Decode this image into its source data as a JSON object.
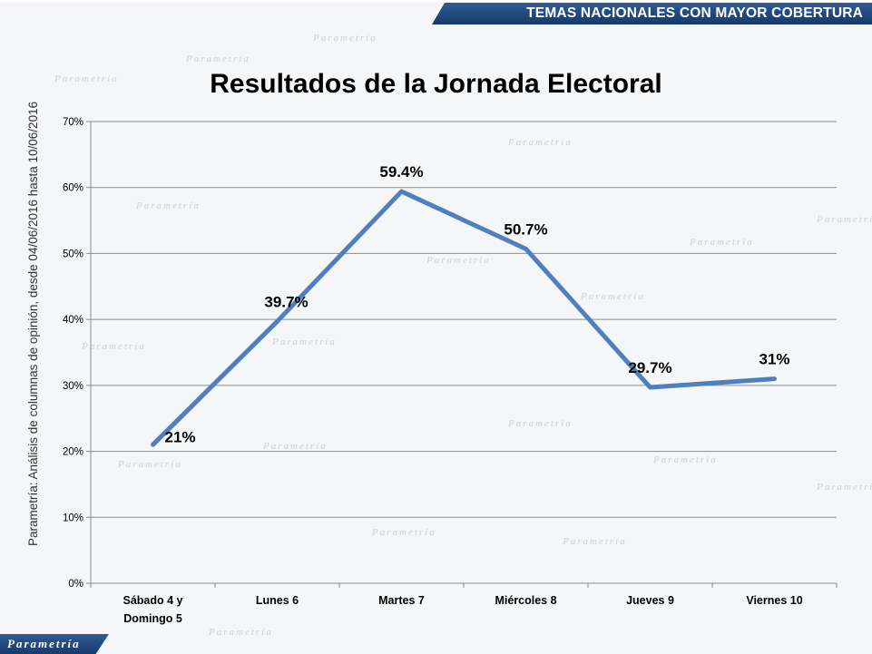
{
  "header": {
    "banner_text": "TEMAS NACIONALES CON MAYOR COBERTURA"
  },
  "side_note": "Parametría: Análisis de columnas de opinión, desde 04/06/2016 hasta  10/06/2016",
  "footer": {
    "logo_text": "Parametría",
    "watermark_text": "Parametría"
  },
  "colors": {
    "series": "#4f7fbd",
    "banner": "#2f5a94",
    "grid": "#8c8c8c"
  },
  "chart_data": {
    "type": "line",
    "title": "Resultados de la Jornada Electoral",
    "xlabel": "",
    "ylabel": "",
    "ylim": [
      0,
      70
    ],
    "yticks": [
      "0%",
      "10%",
      "20%",
      "30%",
      "40%",
      "50%",
      "60%",
      "70%"
    ],
    "grid": true,
    "legend": "none",
    "categories": [
      [
        "Sábado 4 y",
        "Domingo 5"
      ],
      [
        "Lunes 6"
      ],
      [
        "Martes 7"
      ],
      [
        "Miércoles 8"
      ],
      [
        "Jueves 9"
      ],
      [
        "Viernes 10"
      ]
    ],
    "series": [
      {
        "values": [
          21,
          39.7,
          59.4,
          50.7,
          29.7,
          31
        ],
        "labels": [
          "21%",
          "39.7%",
          "59.4%",
          "50.7%",
          "29.7%",
          "31%"
        ]
      }
    ]
  }
}
